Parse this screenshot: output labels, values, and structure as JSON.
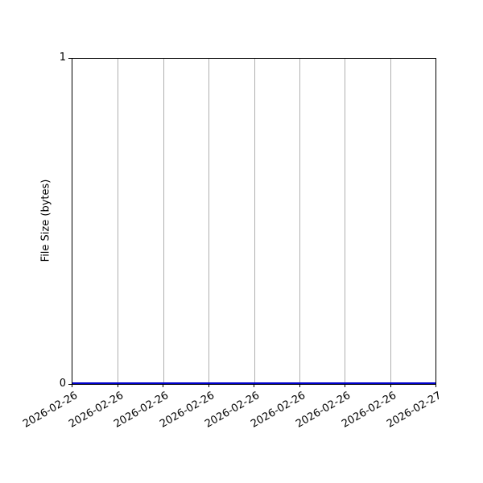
{
  "figure": {
    "background": "#ffffff",
    "ylabel": "File Size (bytes)",
    "y_ticks": [
      {
        "label": "0",
        "value": 0
      },
      {
        "label": "1",
        "value": 1
      }
    ],
    "colors": {
      "line": "#0000cc",
      "grid": "#b0b0b0",
      "spine": "#000000",
      "text": "#000000"
    }
  },
  "chart_data": {
    "type": "line",
    "title": "",
    "xlabel": "",
    "ylabel": "File Size (bytes)",
    "x": [
      "2026-02-26",
      "2026-02-26",
      "2026-02-26",
      "2026-02-26",
      "2026-02-26",
      "2026-02-26",
      "2026-02-26",
      "2026-02-26",
      "2026-02-27"
    ],
    "series": [
      {
        "name": "File Size (bytes)",
        "values": [
          0,
          0,
          0,
          0,
          0,
          0,
          0,
          0,
          0
        ]
      }
    ],
    "ylim": [
      0,
      1
    ],
    "x_tick_rotation_deg": 30,
    "grid": "vertical",
    "legend_position": "none",
    "line_color": "#0000cc"
  }
}
